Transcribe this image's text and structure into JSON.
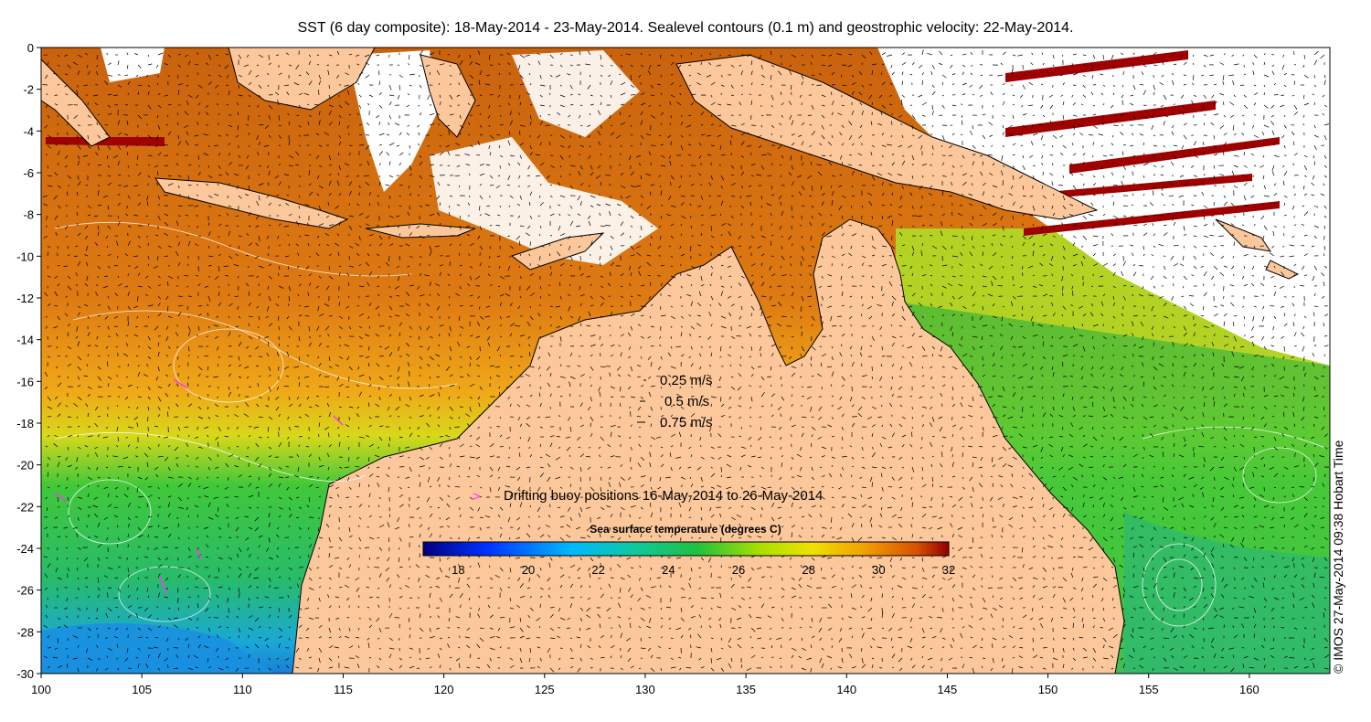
{
  "title": "SST (6 day composite): 18-May-2014 - 23-May-2014. Sealevel contours (0.1 m) and geostrophic velocity: 22-May-2014.",
  "credit": "© IMOS 27-May-2014 09:38 Hobart Time",
  "x_axis": {
    "ticks": [
      "100",
      "105",
      "110",
      "115",
      "120",
      "125",
      "130",
      "135",
      "140",
      "145",
      "150",
      "155",
      "160"
    ]
  },
  "y_axis": {
    "ticks": [
      "0",
      "-2",
      "-4",
      "-6",
      "-8",
      "-10",
      "-12",
      "-14",
      "-16",
      "-18",
      "-20",
      "-22",
      "-24",
      "-26",
      "-28",
      "-30"
    ]
  },
  "velocity_legend": [
    {
      "label": "0.25 m/s"
    },
    {
      "label": "0.5 m/s"
    },
    {
      "label": "0.75 m/s"
    }
  ],
  "buoy_legend": {
    "symbol": ">",
    "label": "Drifting buoy positions 16-May-2014 to 26-May-2014",
    "color": "#ff33ff"
  },
  "colorbar": {
    "title": "Sea surface temperature (degrees C)",
    "min": 17,
    "max": 32,
    "ticks": [
      "18",
      "20",
      "22",
      "24",
      "26",
      "28",
      "30",
      "32"
    ]
  },
  "colors": {
    "land": "#fcc89b",
    "cloud": "#ffffff",
    "warm": "#d9750f",
    "cool": "#2ec24a",
    "cold": "#1ea5e8",
    "rain": "#a00000"
  },
  "map_layers": [
    "sst-field",
    "land",
    "cloud-mask",
    "sealevel-contours",
    "velocity-arrows",
    "buoy-positions"
  ]
}
